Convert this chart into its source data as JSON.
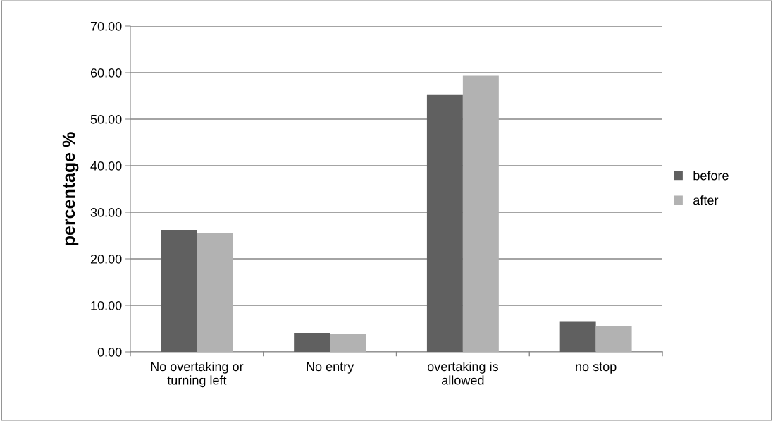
{
  "chart_data": {
    "type": "bar",
    "ylabel": "percentage %",
    "categories": [
      "No overtaking or\nturning left",
      "No entry",
      "overtaking is\nallowed",
      "no stop"
    ],
    "series": [
      {
        "name": "before",
        "color": "#606060",
        "values": [
          26.2,
          4.1,
          55.2,
          6.6
        ]
      },
      {
        "name": "after",
        "color": "#b2b2b2",
        "values": [
          25.5,
          3.9,
          59.3,
          5.6
        ]
      }
    ],
    "ylim": [
      0,
      70
    ],
    "yticks": [
      {
        "value": 0,
        "label": "0.00"
      },
      {
        "value": 10,
        "label": "10.00"
      },
      {
        "value": 20,
        "label": "20.00"
      },
      {
        "value": 30,
        "label": "30.00"
      },
      {
        "value": 40,
        "label": "40.00"
      },
      {
        "value": 50,
        "label": "50.00"
      },
      {
        "value": 60,
        "label": "60.00"
      },
      {
        "value": 70,
        "label": "70.00"
      }
    ],
    "grid": "y",
    "legend": "right"
  }
}
